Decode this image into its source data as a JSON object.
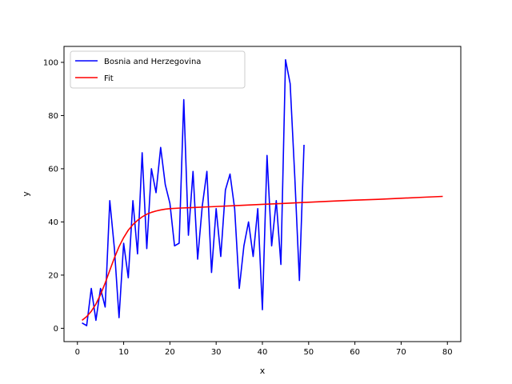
{
  "chart_data": {
    "type": "line",
    "xlabel": "x",
    "ylabel": "y",
    "xlim": [
      -2.9,
      82.9
    ],
    "ylim": [
      -5.0,
      106.0
    ],
    "xticks": [
      0,
      10,
      20,
      30,
      40,
      50,
      60,
      70,
      80
    ],
    "yticks": [
      0,
      20,
      40,
      60,
      80,
      100
    ],
    "grid": false,
    "legend_position": "top-left",
    "series": [
      {
        "name": "Bosnia and Herzegovina",
        "color": "#0000ff",
        "x": [
          1,
          2,
          3,
          4,
          5,
          6,
          7,
          8,
          9,
          10,
          11,
          12,
          13,
          14,
          15,
          16,
          17,
          18,
          19,
          20,
          21,
          22,
          23,
          24,
          25,
          26,
          27,
          28,
          29,
          30,
          31,
          32,
          33,
          34,
          35,
          36,
          37,
          38,
          39,
          40,
          41,
          42,
          43,
          44,
          45,
          46,
          47,
          48,
          49
        ],
        "y": [
          2,
          1,
          15,
          3,
          15,
          8,
          48,
          30,
          4,
          32,
          19,
          48,
          28,
          66,
          30,
          60,
          51,
          68,
          54,
          47,
          31,
          32,
          86,
          35,
          59,
          26,
          46,
          59,
          21,
          45,
          27,
          52,
          58,
          45,
          15,
          31,
          40,
          27,
          45,
          7,
          65,
          31,
          48,
          24,
          101,
          92,
          57,
          18,
          69
        ]
      },
      {
        "name": "Fit",
        "color": "#ff0000",
        "x": [
          1,
          2,
          3,
          4,
          5,
          6,
          7,
          8,
          9,
          10,
          11,
          12,
          13,
          14,
          15,
          16,
          17,
          18,
          19,
          20,
          22,
          25,
          30,
          35,
          40,
          45,
          50,
          55,
          60,
          65,
          70,
          75,
          79
        ],
        "y": [
          3.0,
          4.4,
          6.4,
          9.1,
          12.7,
          17.0,
          21.8,
          26.5,
          30.7,
          34.1,
          36.9,
          39.0,
          40.6,
          41.9,
          42.9,
          43.6,
          44.1,
          44.5,
          44.8,
          45.0,
          45.2,
          45.4,
          45.8,
          46.2,
          46.6,
          47.0,
          47.4,
          47.8,
          48.2,
          48.5,
          48.9,
          49.3,
          49.6
        ]
      }
    ]
  }
}
